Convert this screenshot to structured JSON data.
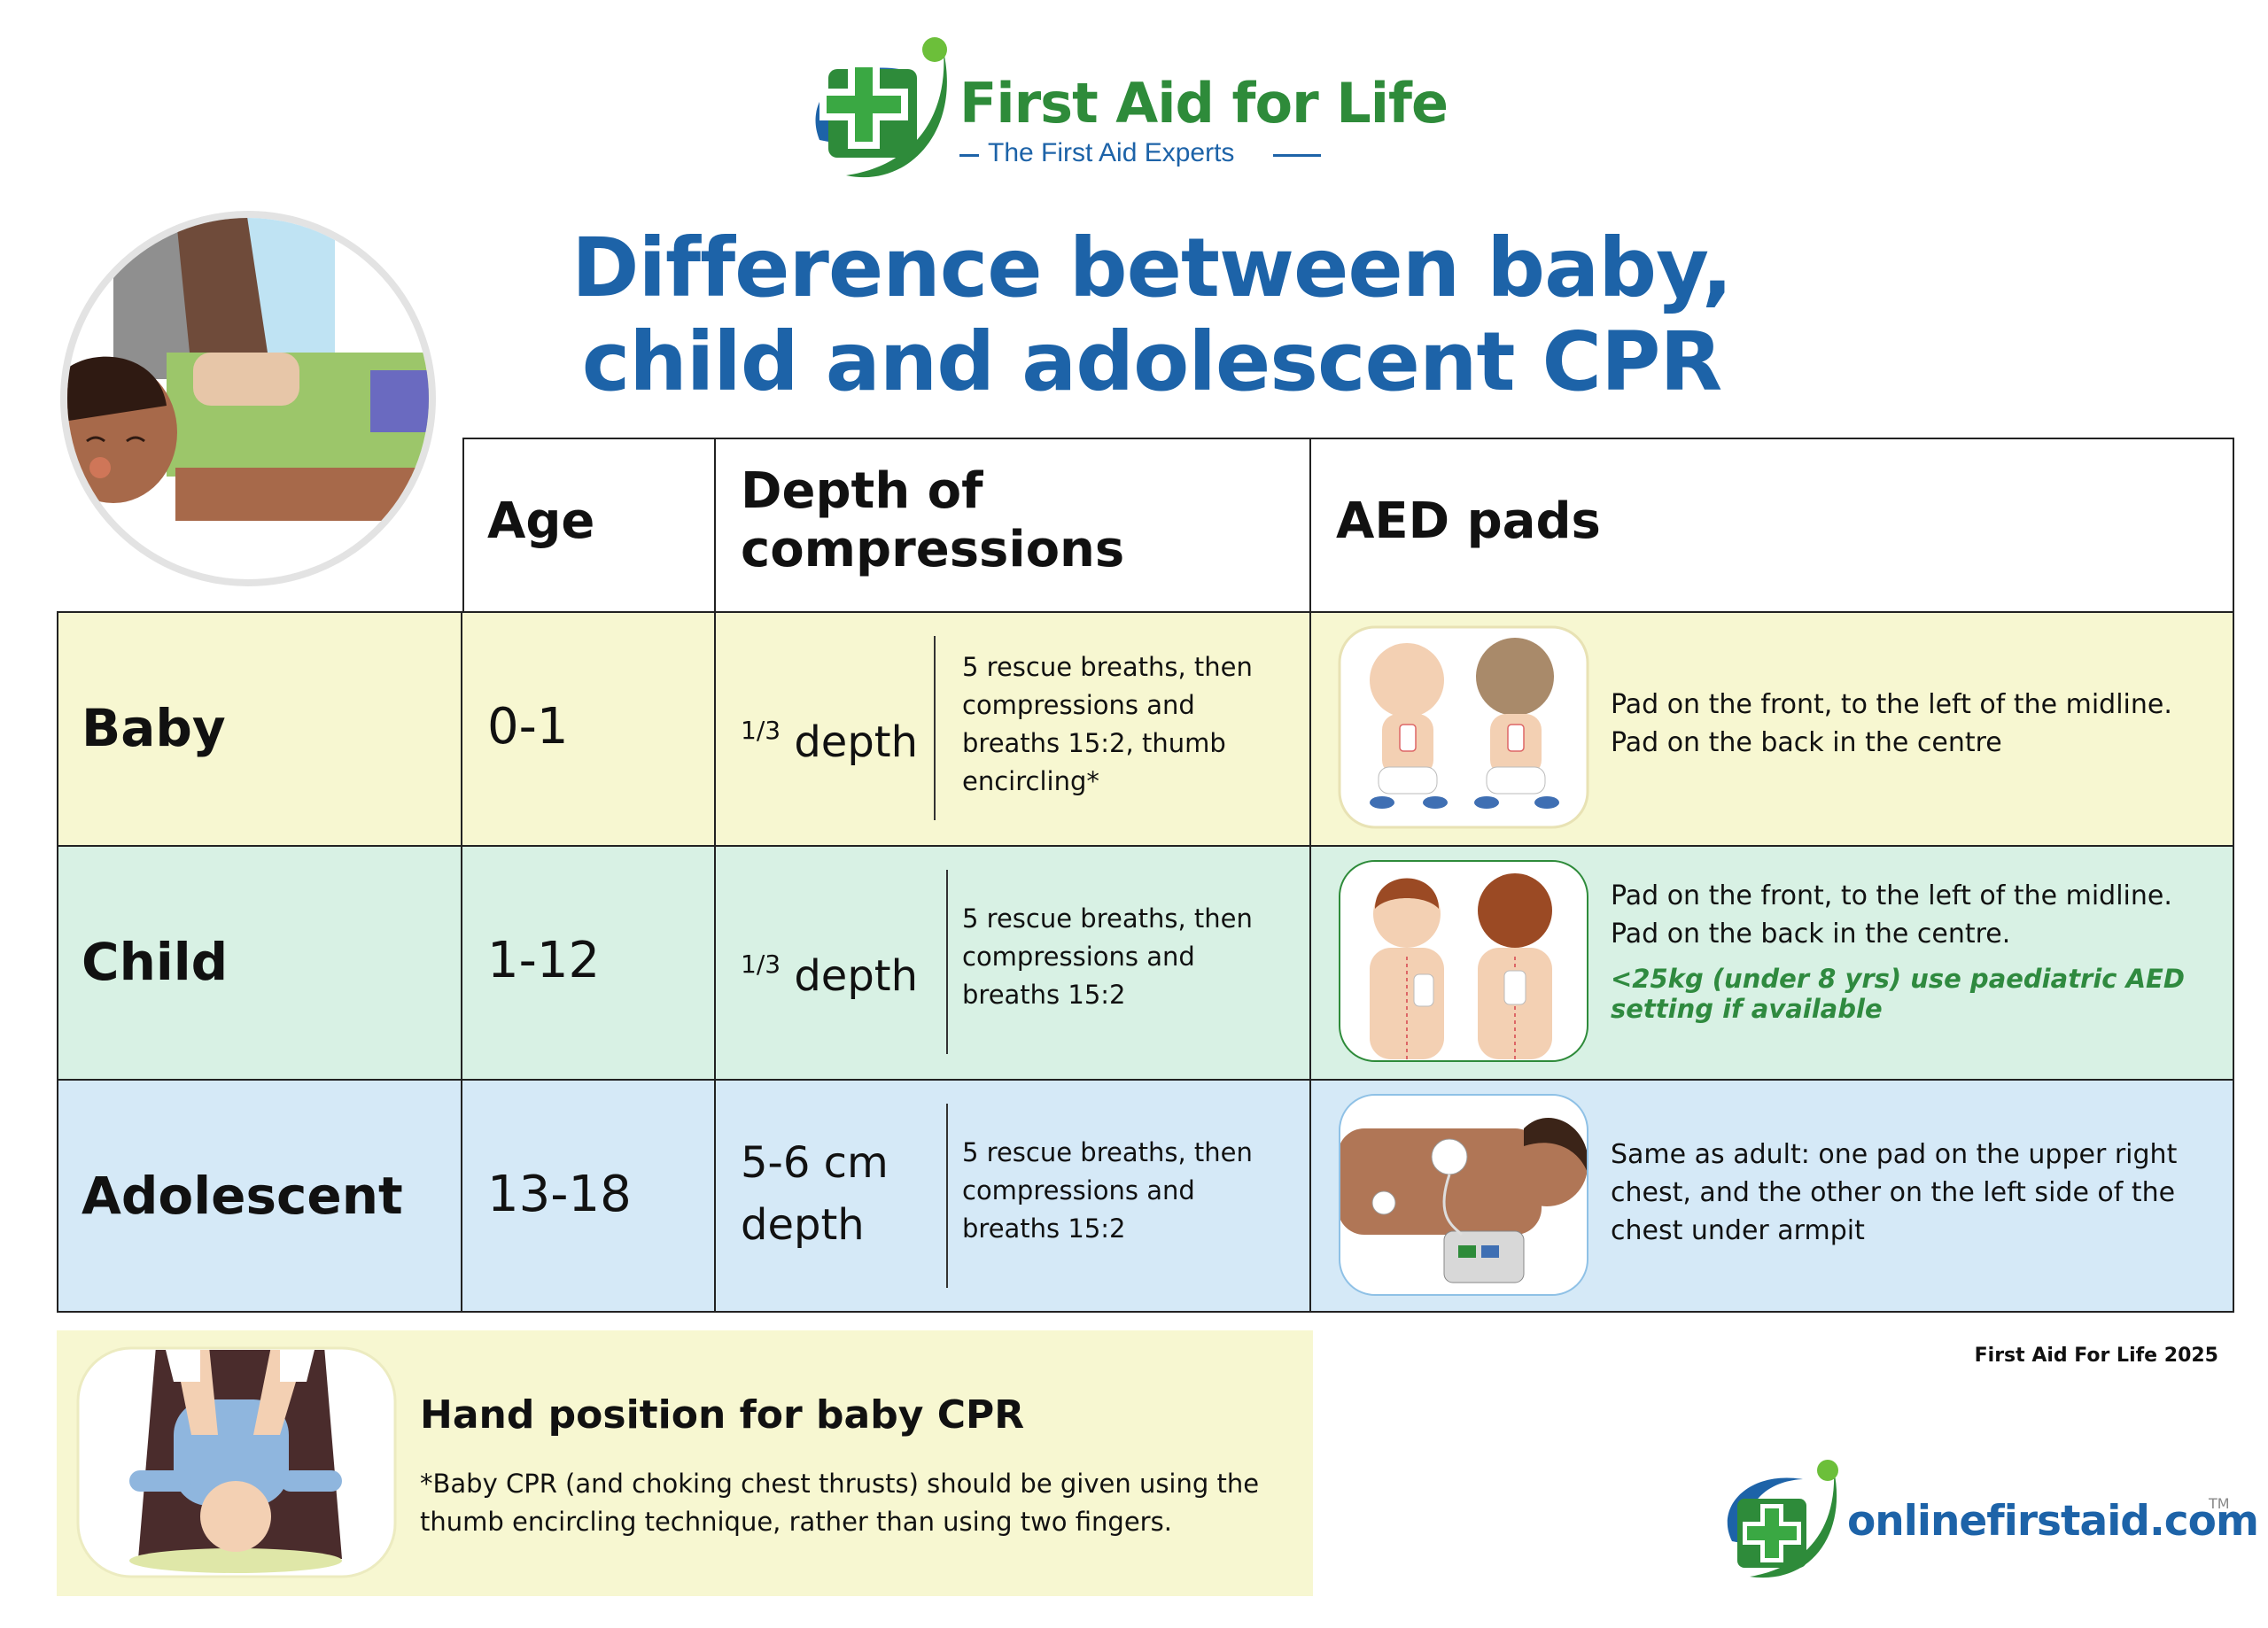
{
  "brand": {
    "name": "First Aid for Life",
    "tagline": "The First Aid Experts",
    "colors": {
      "green": "#2e8b3a",
      "blue": "#1d63a8"
    }
  },
  "title": {
    "line1": "Difference between baby,",
    "line2": "child and adolescent CPR"
  },
  "table": {
    "headers": {
      "age": "Age",
      "depth_line1": "Depth of",
      "depth_line2": "compressions",
      "aed": "AED pads"
    },
    "rows": [
      {
        "label": "Baby",
        "age": "0-1",
        "depth_fraction": "1/3",
        "depth_prefix": "1/3",
        "depth": "depth",
        "note": "5 rescue breaths, then compressions and breaths 15:2, thumb encircling*",
        "aed": "Pad on the front, to the left of the midline. Pad on the back in the centre",
        "aed_warning": "",
        "bg": "#f7f7d1"
      },
      {
        "label": "Child",
        "age": "1-12",
        "depth_prefix": "1/3",
        "depth": "depth",
        "note": "5 rescue breaths, then compressions and breaths 15:2",
        "aed": "Pad on the front, to the left of the midline. Pad on the back in the centre.",
        "aed_warning": "<25kg (under 8 yrs) use paediatric AED setting if available",
        "bg": "#d8f1e4"
      },
      {
        "label": "Adolescent",
        "age": "13-18",
        "depth_prefix": "",
        "depth": "5-6 cm depth",
        "note": "5 rescue breaths, then compressions and breaths 15:2",
        "aed": "Same as adult: one pad on the upper right chest, and the other on the left side of the chest under armpit",
        "aed_warning": "",
        "bg": "#d5e9f7"
      }
    ]
  },
  "hand_position": {
    "title": "Hand position for baby CPR",
    "note": "*Baby CPR (and choking chest thrusts) should be given using the thumb encircling technique, rather than using two fingers."
  },
  "footer": {
    "copyright": "First Aid For Life 2025",
    "site": "onlinefirstaid.com",
    "trademark": "TM"
  }
}
